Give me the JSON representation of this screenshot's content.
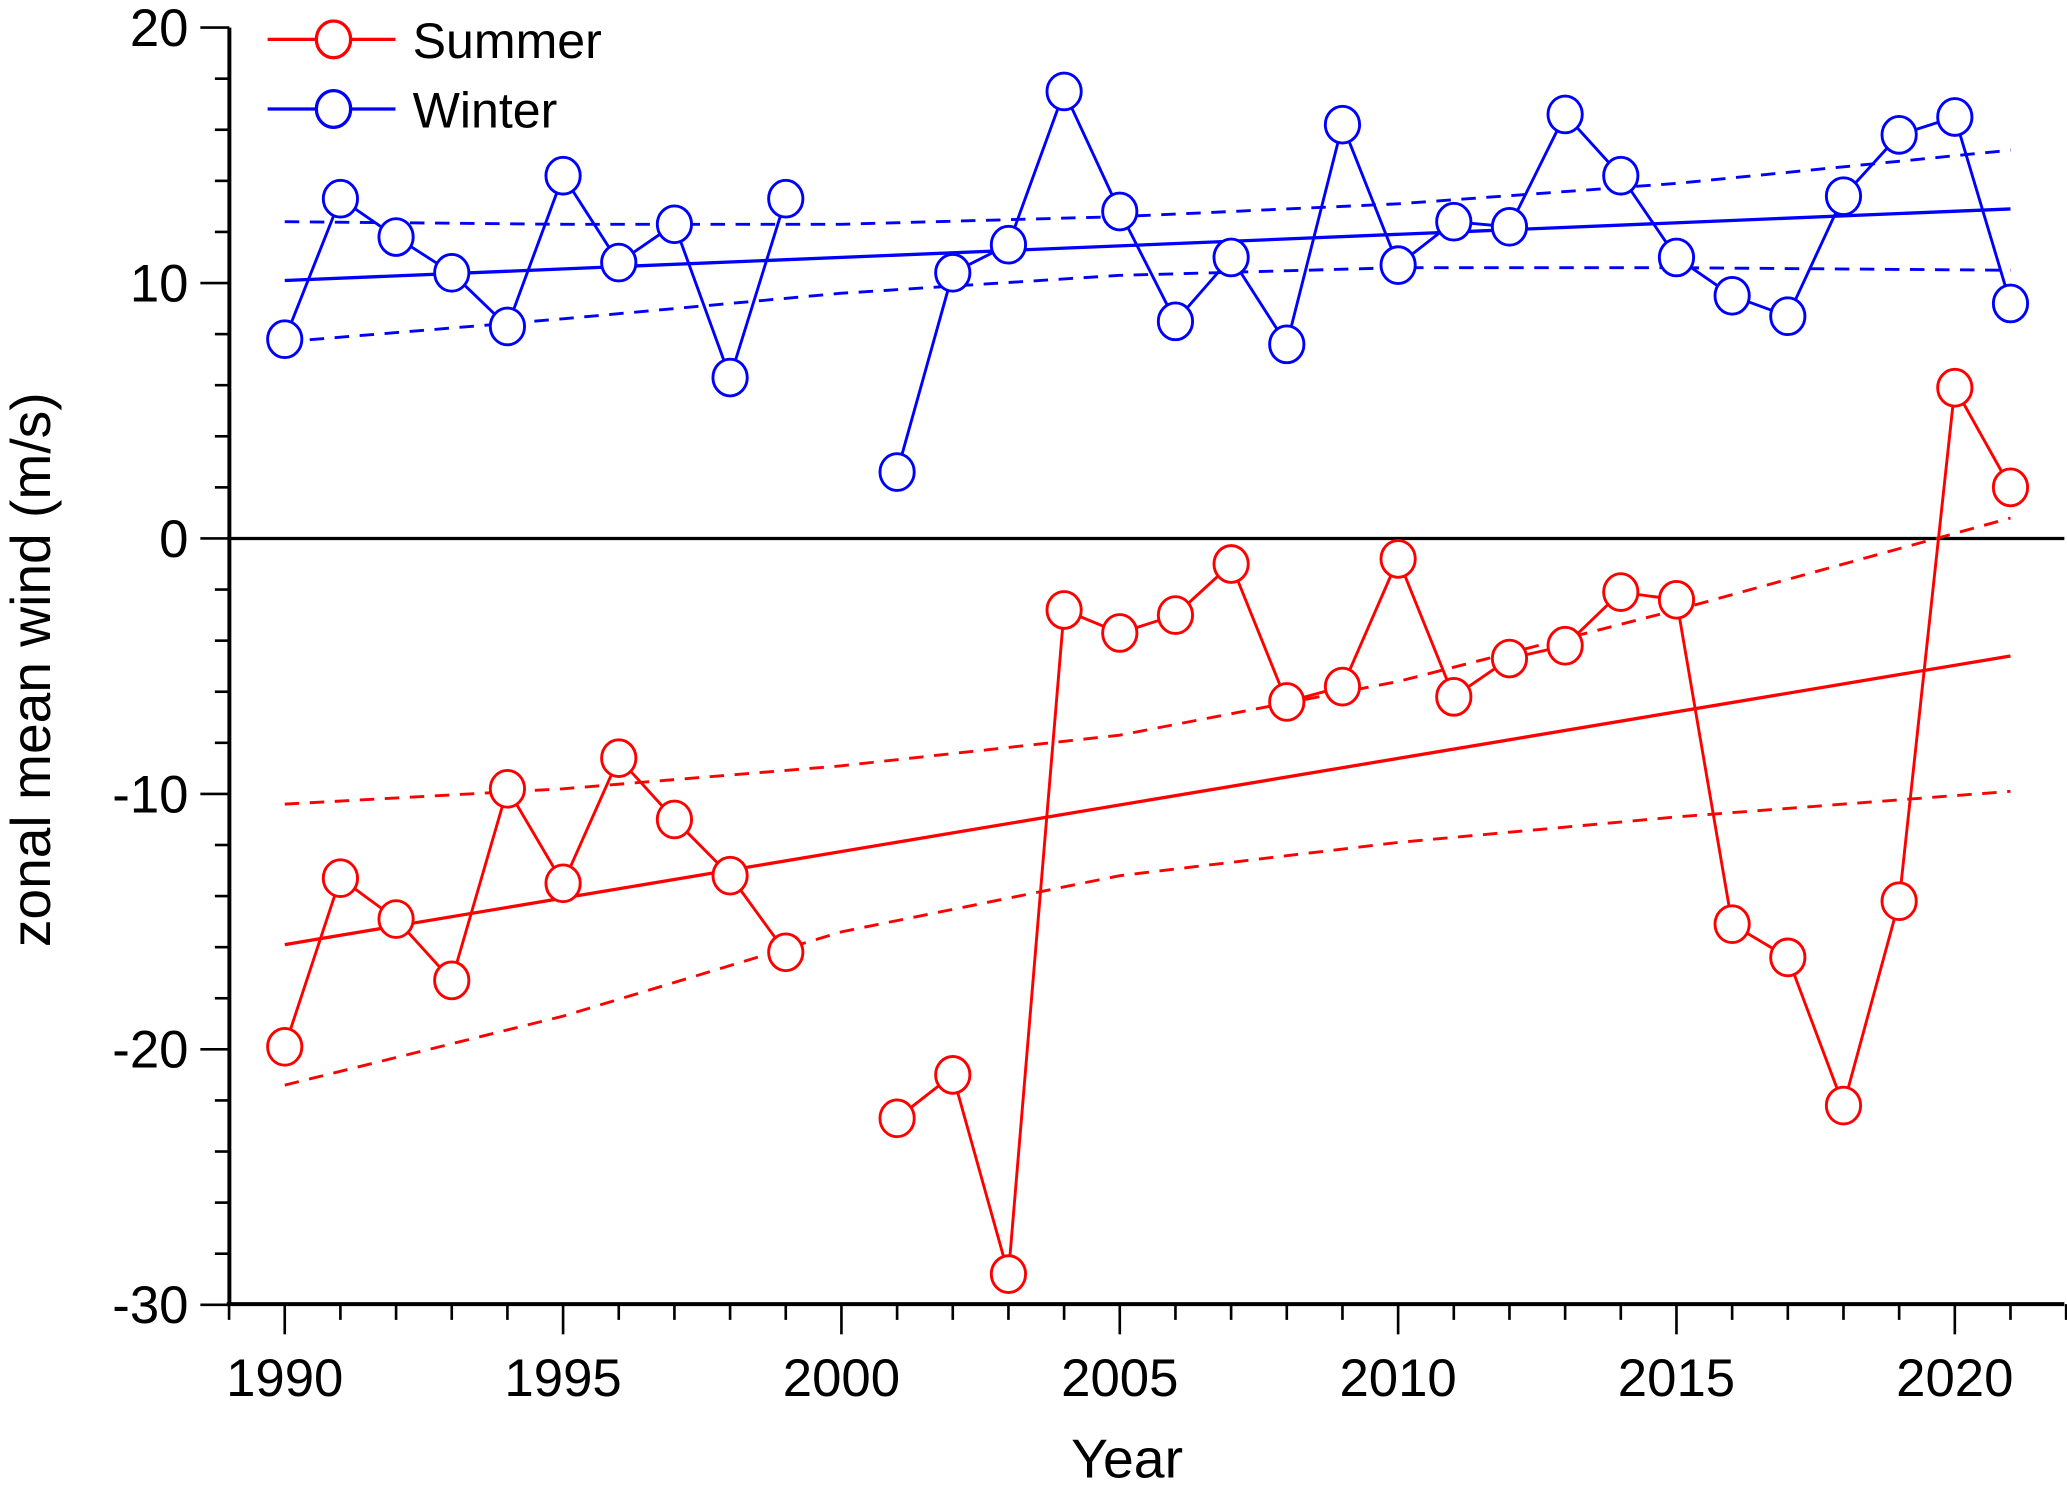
{
  "chart_data": {
    "type": "line",
    "title": "",
    "xlabel": "Year",
    "ylabel": "zonal mean wind (m/s)",
    "xlim": [
      1989,
      2022
    ],
    "ylim": [
      -30,
      20
    ],
    "x_ticks": [
      1990,
      1995,
      2000,
      2005,
      2010,
      2015,
      2020
    ],
    "x_tick_labels": [
      "1990",
      "1995",
      "2000",
      "2005",
      "2010",
      "2015",
      "2020"
    ],
    "y_ticks": [
      -30,
      -20,
      -10,
      0,
      10,
      20
    ],
    "y_tick_labels": [
      "-30",
      "-20",
      "-10",
      "0",
      "10",
      "20"
    ],
    "grid": false,
    "zero_line": true,
    "legend_position": "top-left",
    "x": [
      1990,
      1991,
      1992,
      1993,
      1994,
      1995,
      1996,
      1997,
      1998,
      1999,
      2000,
      2001,
      2002,
      2003,
      2004,
      2005,
      2006,
      2007,
      2008,
      2009,
      2010,
      2011,
      2012,
      2013,
      2014,
      2015,
      2016,
      2017,
      2018,
      2019,
      2020,
      2021
    ],
    "series": [
      {
        "name": "Summer",
        "color": "#ff0000",
        "values": [
          -19.9,
          -13.3,
          -14.9,
          -17.3,
          -9.8,
          -13.5,
          -8.6,
          -11.0,
          -13.2,
          -16.2,
          null,
          -22.7,
          -21.0,
          -28.8,
          -2.8,
          -3.7,
          -3.0,
          -1.0,
          -6.4,
          -5.8,
          -0.8,
          -6.2,
          -4.7,
          -4.2,
          -2.1,
          -2.4,
          -15.1,
          -16.4,
          -22.2,
          -14.2,
          5.9,
          2.0
        ],
        "trend": {
          "start": [
            1990,
            -15.9
          ],
          "end": [
            2021,
            -4.6
          ]
        },
        "ci_upper": [
          [
            1990,
            -10.4
          ],
          [
            1995,
            -9.8
          ],
          [
            2000,
            -8.9
          ],
          [
            2005,
            -7.7
          ],
          [
            2010,
            -5.6
          ],
          [
            2015,
            -2.8
          ],
          [
            2021,
            0.8
          ]
        ],
        "ci_lower": [
          [
            1990,
            -21.4
          ],
          [
            1995,
            -18.7
          ],
          [
            2000,
            -15.4
          ],
          [
            2005,
            -13.2
          ],
          [
            2010,
            -11.9
          ],
          [
            2015,
            -10.9
          ],
          [
            2021,
            -9.9
          ]
        ]
      },
      {
        "name": "Winter",
        "color": "#0000ff",
        "values": [
          7.8,
          13.3,
          11.8,
          10.4,
          8.3,
          14.2,
          10.8,
          12.3,
          6.3,
          13.3,
          null,
          2.6,
          10.4,
          11.5,
          17.5,
          12.8,
          8.5,
          11.0,
          7.6,
          16.2,
          10.7,
          12.4,
          12.2,
          16.6,
          14.2,
          11.0,
          9.5,
          8.7,
          13.4,
          15.8,
          16.5,
          9.2
        ],
        "trend": {
          "start": [
            1990,
            10.1
          ],
          "end": [
            2021,
            12.9
          ]
        },
        "ci_upper": [
          [
            1990,
            12.4
          ],
          [
            1995,
            12.3
          ],
          [
            2000,
            12.3
          ],
          [
            2005,
            12.6
          ],
          [
            2010,
            13.1
          ],
          [
            2015,
            13.9
          ],
          [
            2021,
            15.2
          ]
        ],
        "ci_lower": [
          [
            1990,
            7.7
          ],
          [
            1995,
            8.6
          ],
          [
            2000,
            9.6
          ],
          [
            2005,
            10.3
          ],
          [
            2010,
            10.6
          ],
          [
            2015,
            10.6
          ],
          [
            2021,
            10.5
          ]
        ]
      }
    ]
  }
}
